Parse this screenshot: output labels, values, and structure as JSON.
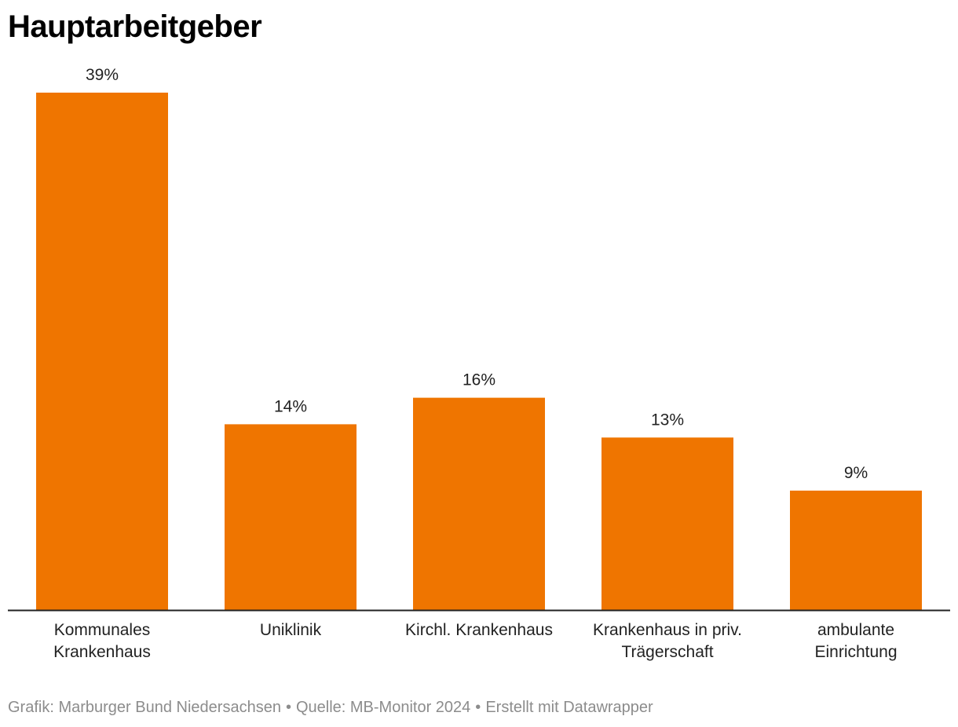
{
  "title": "Hauptarbeitgeber",
  "footer": {
    "grafik": "Grafik: Marburger Bund Niedersachsen",
    "quelle": "Quelle: MB-Monitor 2024",
    "erstellt": "Erstellt mit Datawrapper",
    "separator": "•"
  },
  "colors": {
    "bar": "#ef7500",
    "baseline": "#222222"
  },
  "chart_data": {
    "type": "bar",
    "title": "Hauptarbeitgeber",
    "xlabel": "",
    "ylabel": "",
    "categories": [
      [
        "Kommunales",
        "Krankenhaus"
      ],
      [
        "Uniklinik"
      ],
      [
        "Kirchl. Krankenhaus"
      ],
      [
        "Krankenhaus in priv.",
        "Trägerschaft"
      ],
      [
        "ambulante",
        "Einrichtung"
      ]
    ],
    "values": [
      39,
      14,
      16,
      13,
      9
    ],
    "value_labels": [
      "39%",
      "14%",
      "16%",
      "13%",
      "9%"
    ],
    "unit": "%",
    "ylim": [
      0,
      39
    ],
    "grid": false,
    "legend": "none"
  }
}
